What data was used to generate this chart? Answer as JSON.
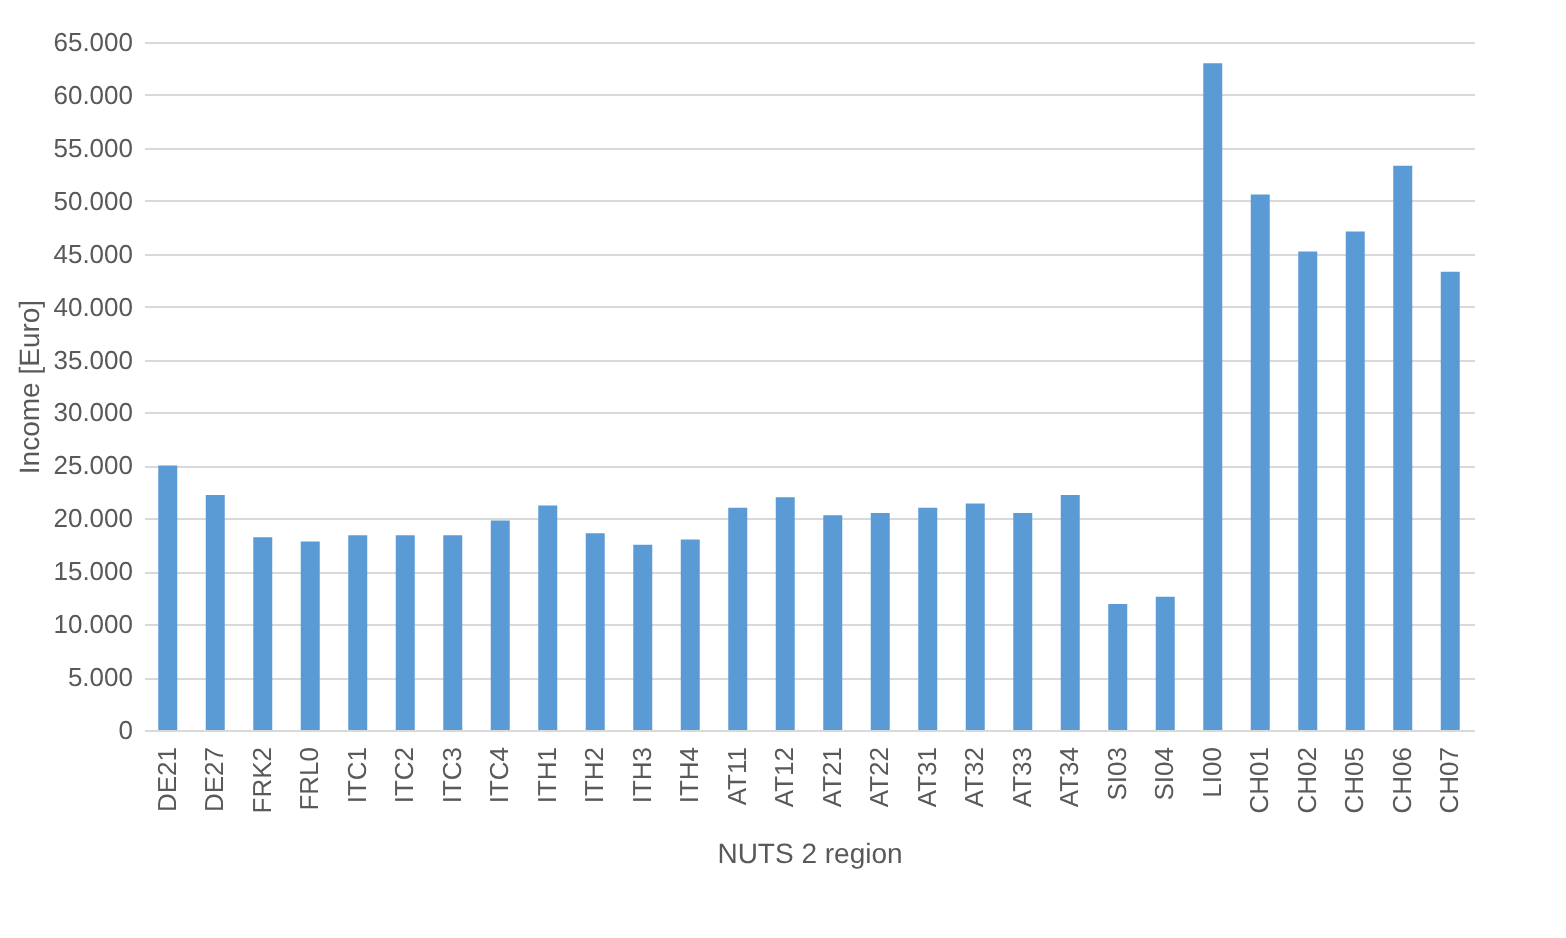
{
  "chart_data": {
    "type": "bar",
    "xlabel": "NUTS 2 region",
    "ylabel": "Income [Euro]",
    "categories": [
      "DE21",
      "DE27",
      "FRK2",
      "FRL0",
      "ITC1",
      "ITC2",
      "ITC3",
      "ITC4",
      "ITH1",
      "ITH2",
      "ITH3",
      "ITH4",
      "AT11",
      "AT12",
      "AT21",
      "AT22",
      "AT31",
      "AT32",
      "AT33",
      "AT34",
      "SI03",
      "SI04",
      "LI00",
      "CH01",
      "CH02",
      "CH05",
      "CH06",
      "CH07"
    ],
    "values": [
      25000,
      22200,
      18200,
      17800,
      18400,
      18400,
      18400,
      19800,
      21200,
      18600,
      17500,
      18000,
      21000,
      22000,
      20300,
      20500,
      21000,
      21400,
      20500,
      22200,
      11900,
      12600,
      63000,
      50600,
      45200,
      47100,
      53300,
      43300
    ],
    "color": "#5b9bd5",
    "ylim": [
      0,
      65000
    ],
    "yticks": [
      {
        "value": 0,
        "label": "0"
      },
      {
        "value": 5000,
        "label": "5.000"
      },
      {
        "value": 10000,
        "label": "10.000"
      },
      {
        "value": 15000,
        "label": "15.000"
      },
      {
        "value": 20000,
        "label": "20.000"
      },
      {
        "value": 25000,
        "label": "25.000"
      },
      {
        "value": 30000,
        "label": "30.000"
      },
      {
        "value": 35000,
        "label": "35.000"
      },
      {
        "value": 40000,
        "label": "40.000"
      },
      {
        "value": 45000,
        "label": "45.000"
      },
      {
        "value": 50000,
        "label": "50.000"
      },
      {
        "value": 55000,
        "label": "55.000"
      },
      {
        "value": 60000,
        "label": "60.000"
      },
      {
        "value": 65000,
        "label": "65.000"
      }
    ],
    "grid": "y"
  }
}
